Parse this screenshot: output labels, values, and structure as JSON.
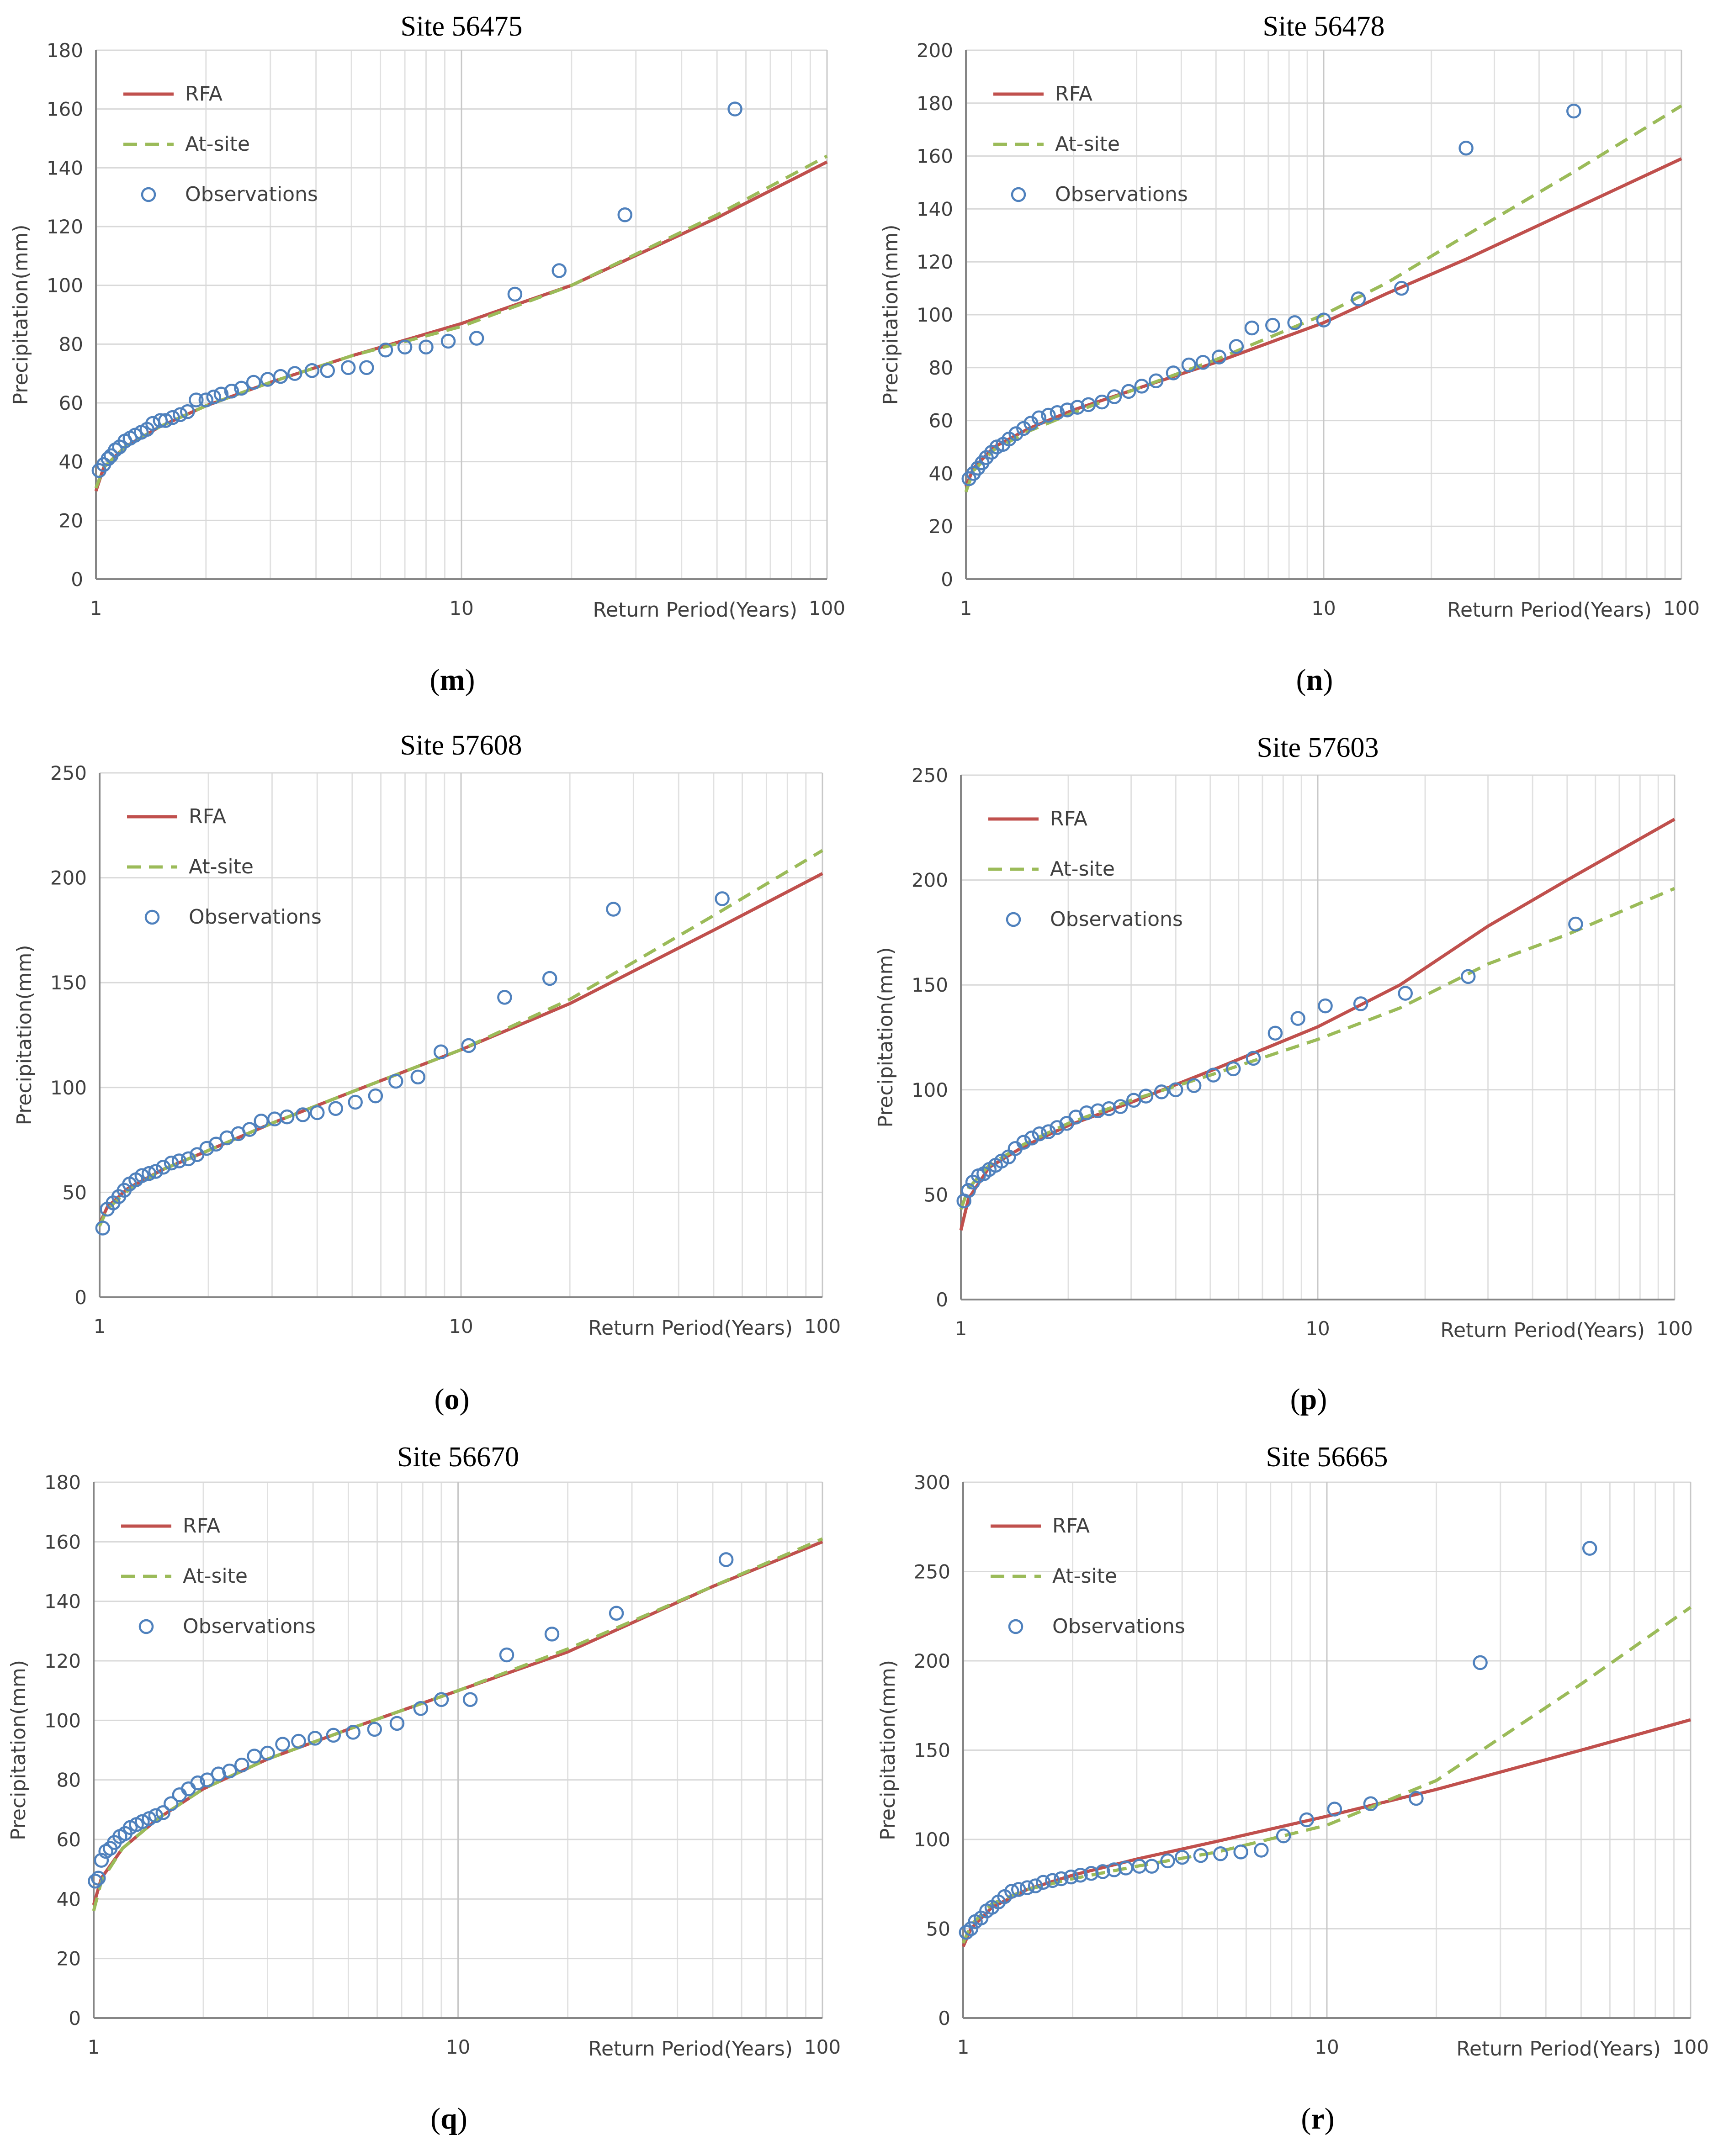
{
  "chart_data": [
    {
      "type": "line",
      "panel_label": "m",
      "title": "Site 56475",
      "xlabel": "Return Period(Years)",
      "ylabel": "Precipitation(mm)",
      "xscale": "log",
      "xlim": [
        1,
        100
      ],
      "ylim": [
        0,
        180
      ],
      "yticks": [
        0,
        20,
        40,
        60,
        80,
        100,
        120,
        140,
        160,
        180
      ],
      "xticks": [
        1,
        10,
        100
      ],
      "legend": {
        "position": "top-left",
        "entries": [
          "RFA",
          "At-site",
          "Observations"
        ]
      },
      "series": [
        {
          "name": "RFA",
          "style": "solid",
          "color": "#c0504d",
          "x": [
            1,
            1.05,
            1.2,
            1.5,
            2,
            3,
            5,
            10,
            20,
            50,
            100
          ],
          "y": [
            30,
            38,
            45,
            52,
            59,
            67,
            76,
            87,
            100,
            123,
            142
          ]
        },
        {
          "name": "At-site",
          "style": "dashed",
          "color": "#9bbb59",
          "x": [
            1,
            1.05,
            1.2,
            1.5,
            2,
            3,
            5,
            10,
            20,
            50,
            100
          ],
          "y": [
            31,
            38,
            45,
            52,
            59,
            67,
            76,
            86,
            100,
            124,
            144
          ]
        },
        {
          "name": "Observations",
          "style": "marker",
          "color": "#4f81bd",
          "x": [
            1.02,
            1.05,
            1.08,
            1.1,
            1.13,
            1.16,
            1.2,
            1.24,
            1.28,
            1.33,
            1.38,
            1.43,
            1.5,
            1.55,
            1.62,
            1.7,
            1.78,
            1.88,
            2.0,
            2.1,
            2.2,
            2.35,
            2.5,
            2.7,
            2.95,
            3.2,
            3.5,
            3.9,
            4.3,
            4.9,
            5.5,
            6.2,
            7.0,
            8.0,
            9.2,
            11.0,
            14.0,
            18.5,
            28.0,
            56.0
          ],
          "y": [
            37,
            39,
            41,
            42,
            44,
            45,
            47,
            48,
            49,
            50,
            51,
            53,
            54,
            54,
            55,
            56,
            57,
            61,
            61,
            62,
            63,
            64,
            65,
            67,
            68,
            69,
            70,
            71,
            71,
            72,
            72,
            78,
            79,
            79,
            81,
            82,
            97,
            105,
            124,
            160
          ]
        }
      ]
    },
    {
      "type": "line",
      "panel_label": "n",
      "title": "Site 56478",
      "xlabel": "Return Period(Years)",
      "ylabel": "Precipitation(mm)",
      "xscale": "log",
      "xlim": [
        1,
        100
      ],
      "ylim": [
        0,
        200
      ],
      "yticks": [
        0,
        20,
        40,
        60,
        80,
        100,
        120,
        140,
        160,
        180,
        200
      ],
      "xticks": [
        1,
        10,
        100
      ],
      "legend": {
        "position": "top-left",
        "entries": [
          "RFA",
          "At-site",
          "Observations"
        ]
      },
      "series": [
        {
          "name": "RFA",
          "style": "solid",
          "color": "#c0504d",
          "x": [
            1,
            1.05,
            1.2,
            1.5,
            2,
            3,
            5,
            10,
            15,
            25,
            50,
            100
          ],
          "y": [
            35,
            42,
            50,
            57,
            64,
            72,
            82,
            97,
            108,
            121,
            140,
            159
          ]
        },
        {
          "name": "At-site",
          "style": "dashed",
          "color": "#9bbb59",
          "x": [
            1,
            1.05,
            1.2,
            1.5,
            2,
            3,
            5,
            10,
            15,
            25,
            50,
            100
          ],
          "y": [
            33,
            41,
            49,
            56,
            63,
            72,
            83,
            100,
            112,
            130,
            154,
            179
          ]
        },
        {
          "name": "Observations",
          "style": "marker",
          "color": "#4f81bd",
          "x": [
            1.02,
            1.05,
            1.08,
            1.11,
            1.14,
            1.18,
            1.22,
            1.27,
            1.32,
            1.38,
            1.45,
            1.52,
            1.6,
            1.7,
            1.8,
            1.92,
            2.05,
            2.2,
            2.4,
            2.6,
            2.85,
            3.1,
            3.4,
            3.8,
            4.2,
            4.6,
            5.1,
            5.7,
            6.3,
            7.2,
            8.3,
            10.0,
            12.5,
            16.5,
            25.0,
            50.0
          ],
          "y": [
            38,
            40,
            42,
            44,
            46,
            48,
            50,
            51,
            53,
            55,
            57,
            59,
            61,
            62,
            63,
            64,
            65,
            66,
            67,
            69,
            71,
            73,
            75,
            78,
            81,
            82,
            84,
            88,
            95,
            96,
            97,
            98,
            106,
            110,
            163,
            177
          ]
        }
      ]
    },
    {
      "type": "line",
      "panel_label": "o",
      "title": "Site 57608",
      "xlabel": "Return Period(Years)",
      "ylabel": "Precipitation(mm)",
      "xscale": "log",
      "xlim": [
        1,
        100
      ],
      "ylim": [
        0,
        250
      ],
      "yticks": [
        0,
        50,
        100,
        150,
        200,
        250
      ],
      "xticks": [
        1,
        10,
        100
      ],
      "legend": {
        "position": "top-left",
        "entries": [
          "RFA",
          "At-site",
          "Observations"
        ]
      },
      "series": [
        {
          "name": "RFA",
          "style": "solid",
          "color": "#c0504d",
          "x": [
            1,
            1.05,
            1.2,
            1.5,
            2,
            3,
            5,
            10,
            20,
            50,
            100
          ],
          "y": [
            35,
            43,
            52,
            61,
            70,
            83,
            98,
            118,
            140,
            175,
            202
          ]
        },
        {
          "name": "At-site",
          "style": "dashed",
          "color": "#9bbb59",
          "x": [
            1,
            1.05,
            1.2,
            1.5,
            2,
            3,
            5,
            10,
            20,
            50,
            100
          ],
          "y": [
            34,
            42,
            51,
            61,
            70,
            83,
            98,
            118,
            142,
            182,
            213
          ]
        },
        {
          "name": "Observations",
          "style": "marker",
          "color": "#4f81bd",
          "x": [
            1.02,
            1.05,
            1.09,
            1.13,
            1.17,
            1.21,
            1.26,
            1.31,
            1.37,
            1.43,
            1.5,
            1.58,
            1.66,
            1.76,
            1.86,
            1.98,
            2.1,
            2.25,
            2.42,
            2.6,
            2.8,
            3.05,
            3.3,
            3.65,
            4.0,
            4.5,
            5.1,
            5.8,
            6.6,
            7.6,
            8.8,
            10.5,
            13.2,
            17.6,
            26.4,
            52.8
          ],
          "y": [
            33,
            42,
            45,
            48,
            51,
            54,
            56,
            58,
            59,
            60,
            62,
            64,
            65,
            66,
            68,
            71,
            73,
            76,
            78,
            80,
            84,
            85,
            86,
            87,
            88,
            90,
            93,
            96,
            103,
            105,
            117,
            120,
            143,
            152,
            185,
            190
          ]
        }
      ]
    },
    {
      "type": "line",
      "panel_label": "p",
      "title": "Site 57603",
      "xlabel": "Return Period(Years)",
      "ylabel": "Precipitation(mm)",
      "xscale": "log",
      "xlim": [
        1,
        100
      ],
      "ylim": [
        0,
        250
      ],
      "yticks": [
        0,
        50,
        100,
        150,
        200,
        250
      ],
      "xticks": [
        1,
        10,
        100
      ],
      "legend": {
        "position": "top-left",
        "entries": [
          "RFA",
          "At-site",
          "Observations"
        ]
      },
      "series": [
        {
          "name": "RFA",
          "style": "solid",
          "color": "#c0504d",
          "x": [
            1,
            1.05,
            1.2,
            1.5,
            2,
            3,
            5,
            10,
            17,
            30,
            50,
            100
          ],
          "y": [
            33,
            48,
            63,
            73,
            83,
            94,
            109,
            130,
            150,
            178,
            200,
            229
          ]
        },
        {
          "name": "At-site",
          "style": "dashed",
          "color": "#9bbb59",
          "x": [
            1,
            1.05,
            1.2,
            1.5,
            2,
            3,
            5,
            10,
            17,
            30,
            50,
            100
          ],
          "y": [
            43,
            53,
            64,
            74,
            84,
            95,
            107,
            124,
            139,
            160,
            174,
            196
          ]
        },
        {
          "name": "Observations",
          "style": "marker",
          "color": "#4f81bd",
          "x": [
            1.02,
            1.05,
            1.08,
            1.12,
            1.16,
            1.2,
            1.25,
            1.3,
            1.36,
            1.42,
            1.5,
            1.58,
            1.66,
            1.76,
            1.86,
            1.98,
            2.1,
            2.25,
            2.42,
            2.6,
            2.8,
            3.05,
            3.3,
            3.65,
            4.0,
            4.5,
            5.1,
            5.8,
            6.6,
            7.6,
            8.8,
            10.5,
            13.2,
            17.6,
            26.4,
            52.8
          ],
          "y": [
            47,
            52,
            56,
            59,
            60,
            62,
            64,
            66,
            68,
            72,
            75,
            77,
            79,
            80,
            82,
            84,
            87,
            89,
            90,
            91,
            92,
            95,
            97,
            99,
            100,
            102,
            107,
            110,
            115,
            127,
            134,
            140,
            141,
            146,
            154,
            179
          ]
        }
      ]
    },
    {
      "type": "line",
      "panel_label": "q",
      "title": "Site 56670",
      "xlabel": "Return Period(Years)",
      "ylabel": "Precipitation(mm)",
      "xscale": "log",
      "xlim": [
        1,
        100
      ],
      "ylim": [
        0,
        180
      ],
      "yticks": [
        0,
        20,
        40,
        60,
        80,
        100,
        120,
        140,
        160,
        180
      ],
      "xticks": [
        1,
        10,
        100
      ],
      "legend": {
        "position": "top-left",
        "entries": [
          "RFA",
          "At-site",
          "Observations"
        ]
      },
      "series": [
        {
          "name": "RFA",
          "style": "solid",
          "color": "#c0504d",
          "x": [
            1,
            1.05,
            1.2,
            1.5,
            2,
            3,
            5,
            10,
            20,
            50,
            100
          ],
          "y": [
            38,
            47,
            57,
            67,
            77,
            87,
            97,
            110,
            123,
            145,
            160
          ]
        },
        {
          "name": "At-site",
          "style": "dashed",
          "color": "#9bbb59",
          "x": [
            1,
            1.05,
            1.2,
            1.5,
            2,
            3,
            5,
            10,
            20,
            50,
            100
          ],
          "y": [
            36,
            46,
            57,
            67,
            77,
            87,
            97,
            110,
            124,
            145,
            161
          ]
        },
        {
          "name": "Observations",
          "style": "marker",
          "color": "#4f81bd",
          "x": [
            1.01,
            1.03,
            1.05,
            1.08,
            1.11,
            1.14,
            1.18,
            1.22,
            1.26,
            1.31,
            1.36,
            1.42,
            1.48,
            1.55,
            1.63,
            1.72,
            1.82,
            1.93,
            2.05,
            2.2,
            2.36,
            2.55,
            2.76,
            3.0,
            3.3,
            3.65,
            4.05,
            4.55,
            5.15,
            5.9,
            6.8,
            7.9,
            9.0,
            10.8,
            13.6,
            18.1,
            27.2,
            54.4
          ],
          "y": [
            46,
            47,
            53,
            56,
            57,
            59,
            61,
            62,
            64,
            65,
            66,
            67,
            68,
            69,
            72,
            75,
            77,
            79,
            80,
            82,
            83,
            85,
            88,
            89,
            92,
            93,
            94,
            95,
            96,
            97,
            99,
            104,
            107,
            107,
            122,
            129,
            136,
            154
          ]
        }
      ]
    },
    {
      "type": "line",
      "panel_label": "r",
      "title": "Site 56665",
      "xlabel": "Return Period(Years)",
      "ylabel": "Precipitation(mm)",
      "xscale": "log",
      "xlim": [
        1,
        100
      ],
      "ylim": [
        0,
        300
      ],
      "yticks": [
        0,
        50,
        100,
        150,
        200,
        250,
        300
      ],
      "xticks": [
        1,
        10,
        100
      ],
      "legend": {
        "position": "top-left",
        "entries": [
          "RFA",
          "At-site",
          "Observations"
        ]
      },
      "series": [
        {
          "name": "RFA",
          "style": "solid",
          "color": "#c0504d",
          "x": [
            1,
            1.05,
            1.2,
            1.5,
            2,
            3,
            5,
            10,
            20,
            50,
            100
          ],
          "y": [
            40,
            50,
            62,
            72,
            80,
            89,
            99,
            113,
            128,
            150,
            167
          ]
        },
        {
          "name": "At-site",
          "style": "dashed",
          "color": "#9bbb59",
          "x": [
            1,
            1.05,
            1.2,
            1.5,
            2,
            3,
            5,
            10,
            20,
            50,
            100
          ],
          "y": [
            42,
            52,
            64,
            72,
            78,
            85,
            93,
            108,
            133,
            187,
            230
          ]
        },
        {
          "name": "Observations",
          "style": "marker",
          "color": "#4f81bd",
          "x": [
            1.02,
            1.05,
            1.08,
            1.12,
            1.16,
            1.2,
            1.25,
            1.3,
            1.36,
            1.42,
            1.5,
            1.58,
            1.66,
            1.76,
            1.86,
            1.98,
            2.1,
            2.25,
            2.42,
            2.6,
            2.8,
            3.05,
            3.3,
            3.65,
            4.0,
            4.5,
            5.1,
            5.8,
            6.6,
            7.6,
            8.8,
            10.5,
            13.2,
            17.6,
            26.4,
            52.8
          ],
          "y": [
            48,
            50,
            54,
            56,
            60,
            62,
            65,
            68,
            71,
            72,
            73,
            74,
            76,
            77,
            78,
            79,
            80,
            81,
            82,
            83,
            84,
            85,
            85,
            88,
            90,
            91,
            92,
            93,
            94,
            102,
            111,
            117,
            120,
            123,
            199,
            263
          ]
        }
      ]
    }
  ]
}
